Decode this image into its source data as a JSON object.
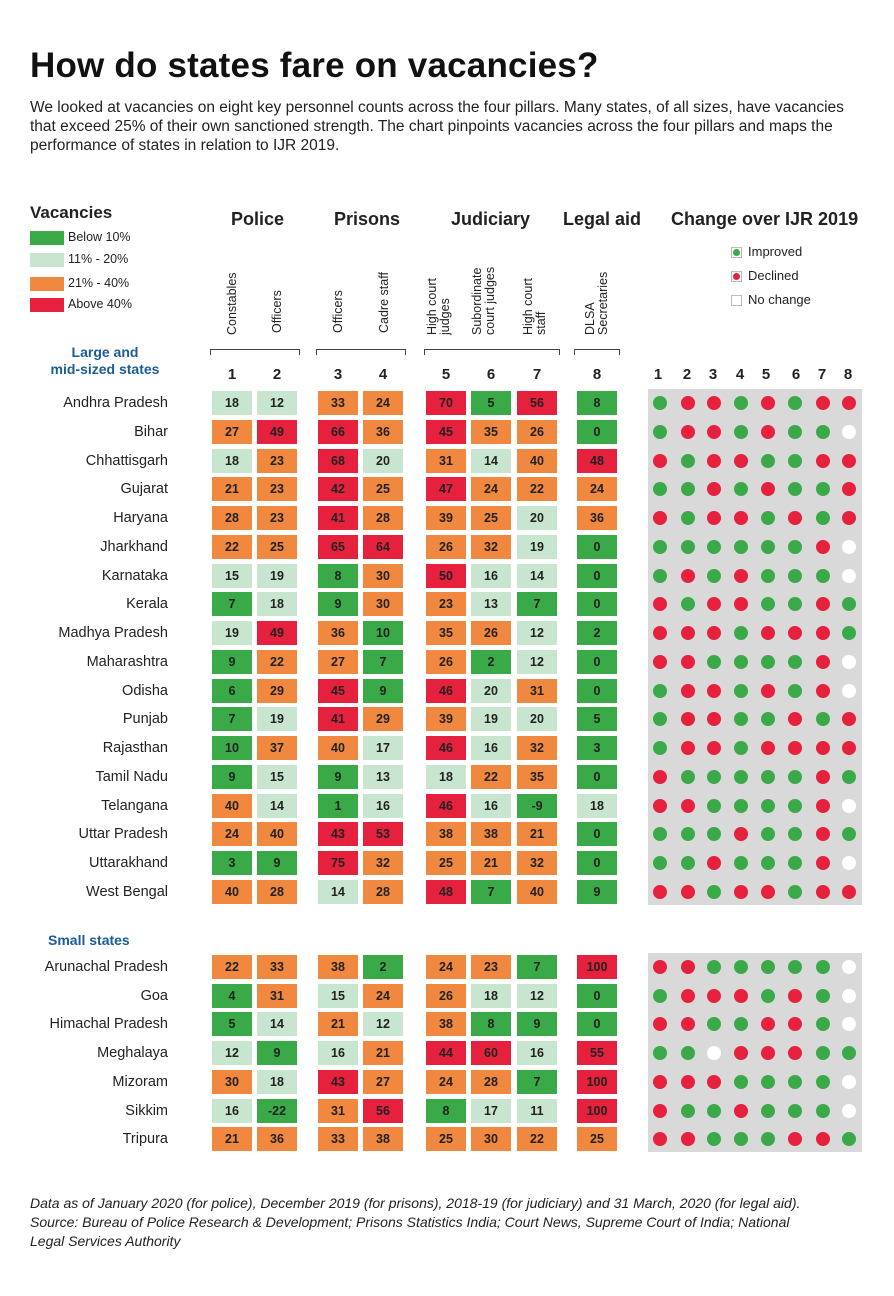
{
  "title": "How do states fare on vacancies?",
  "intro": "We looked at vacancies on eight key personnel counts across the four pillars. Many states, of all sizes, have vacancies that exceed 25% of their own sanctioned strength. The chart pinpoints vacancies across the four pillars and maps the performance of states in relation to IJR 2019.",
  "legend": {
    "title": "Vacancies",
    "items": [
      {
        "label": "Below 10%",
        "color": "#3aaa49"
      },
      {
        "label": "11% - 20%",
        "color": "#c8e6cf"
      },
      {
        "label": "21% - 40%",
        "color": "#f0883f"
      },
      {
        "label": "Above 40%",
        "color": "#e5213e"
      }
    ]
  },
  "pillars": [
    {
      "label": "Police",
      "subs": [
        "Constables",
        "Officers"
      ]
    },
    {
      "label": "Prisons",
      "subs": [
        "Officers",
        "Cadre staff"
      ]
    },
    {
      "label": "Judiciary",
      "subs": [
        "High court\njudges",
        "Subordinate\ncourt judges",
        "High court\nstaff"
      ]
    },
    {
      "label": "Legal aid",
      "subs": [
        "DLSA\nSecretaries"
      ]
    }
  ],
  "column_numbers": [
    "1",
    "2",
    "3",
    "4",
    "5",
    "6",
    "7",
    "8"
  ],
  "change": {
    "title": "Change over IJR 2019",
    "key": [
      {
        "label": "Improved",
        "color": "#3aaa49"
      },
      {
        "label": "Declined",
        "color": "#e5213e"
      },
      {
        "label": "No change",
        "color": "#ffffff"
      }
    ]
  },
  "chart_data": {
    "type": "table",
    "title": "How do states fare on vacancies?",
    "columns": [
      "Constables",
      "Officers (Police)",
      "Officers (Prisons)",
      "Cadre staff",
      "High court judges",
      "Subordinate court judges",
      "High court staff",
      "DLSA Secretaries"
    ],
    "bins": [
      "Below 10%",
      "11% - 20%",
      "21% - 40%",
      "Above 40%"
    ],
    "change_key": {
      "I": "Improved",
      "D": "Declined",
      "N": "No change"
    },
    "sections": [
      {
        "label": "Large and\nmid-sized states",
        "rows": [
          {
            "state": "Andhra Pradesh",
            "values": [
              "18",
              "12",
              "33",
              "24",
              "70",
              "5",
              "56",
              "8"
            ],
            "change": [
              "I",
              "D",
              "D",
              "I",
              "D",
              "I",
              "D",
              "D"
            ]
          },
          {
            "state": "Bihar",
            "values": [
              "27",
              "49",
              "66",
              "36",
              "45",
              "35",
              "26",
              "0"
            ],
            "change": [
              "I",
              "D",
              "D",
              "I",
              "D",
              "I",
              "I",
              "N"
            ]
          },
          {
            "state": "Chhattisgarh",
            "values": [
              "18",
              "23",
              "68",
              "20",
              "31",
              "14",
              "40",
              "48"
            ],
            "change": [
              "D",
              "I",
              "D",
              "D",
              "I",
              "I",
              "D",
              "D"
            ]
          },
          {
            "state": "Gujarat",
            "values": [
              "21",
              "23",
              "42",
              "25",
              "47",
              "24",
              "22",
              "24"
            ],
            "change": [
              "I",
              "I",
              "D",
              "I",
              "D",
              "I",
              "I",
              "D"
            ]
          },
          {
            "state": "Haryana",
            "values": [
              "28",
              "23",
              "41",
              "28",
              "39",
              "25",
              "20",
              "36"
            ],
            "change": [
              "D",
              "I",
              "D",
              "D",
              "I",
              "D",
              "I",
              "D"
            ]
          },
          {
            "state": "Jharkhand",
            "values": [
              "22",
              "25",
              "65",
              "64",
              "26",
              "32",
              "19",
              "0"
            ],
            "change": [
              "I",
              "I",
              "I",
              "I",
              "I",
              "I",
              "D",
              "N"
            ]
          },
          {
            "state": "Karnataka",
            "values": [
              "15",
              "19",
              "8",
              "30",
              "50",
              "16",
              "14",
              "0"
            ],
            "change": [
              "I",
              "D",
              "I",
              "D",
              "I",
              "I",
              "I",
              "N"
            ]
          },
          {
            "state": "Kerala",
            "values": [
              "7",
              "18",
              "9",
              "30",
              "23",
              "13",
              "7",
              "0"
            ],
            "change": [
              "D",
              "I",
              "D",
              "D",
              "I",
              "I",
              "D",
              "I"
            ]
          },
          {
            "state": "Madhya Pradesh",
            "values": [
              "19",
              "49",
              "36",
              "10",
              "35",
              "26",
              "12",
              "2"
            ],
            "change": [
              "D",
              "D",
              "D",
              "I",
              "D",
              "D",
              "D",
              "I"
            ]
          },
          {
            "state": "Maharashtra",
            "values": [
              "9",
              "22",
              "27",
              "7",
              "26",
              "2",
              "12",
              "0"
            ],
            "change": [
              "D",
              "D",
              "I",
              "I",
              "I",
              "I",
              "D",
              "N"
            ]
          },
          {
            "state": "Odisha",
            "values": [
              "6",
              "29",
              "45",
              "9",
              "46",
              "20",
              "31",
              "0"
            ],
            "change": [
              "I",
              "D",
              "D",
              "I",
              "D",
              "I",
              "D",
              "N"
            ]
          },
          {
            "state": "Punjab",
            "values": [
              "7",
              "19",
              "41",
              "29",
              "39",
              "19",
              "20",
              "5"
            ],
            "change": [
              "I",
              "D",
              "D",
              "I",
              "I",
              "D",
              "I",
              "D"
            ]
          },
          {
            "state": "Rajasthan",
            "values": [
              "10",
              "37",
              "40",
              "17",
              "46",
              "16",
              "32",
              "3"
            ],
            "change": [
              "I",
              "D",
              "D",
              "I",
              "D",
              "D",
              "D",
              "D"
            ]
          },
          {
            "state": "Tamil Nadu",
            "values": [
              "9",
              "15",
              "9",
              "13",
              "18",
              "22",
              "35",
              "0"
            ],
            "change": [
              "D",
              "I",
              "I",
              "I",
              "I",
              "I",
              "D",
              "I"
            ]
          },
          {
            "state": "Telangana",
            "values": [
              "40",
              "14",
              "1",
              "16",
              "46",
              "16",
              "-9",
              "18"
            ],
            "change": [
              "D",
              "D",
              "I",
              "I",
              "I",
              "I",
              "D",
              "N"
            ]
          },
          {
            "state": "Uttar Pradesh",
            "values": [
              "24",
              "40",
              "43",
              "53",
              "38",
              "38",
              "21",
              "0"
            ],
            "change": [
              "I",
              "I",
              "I",
              "D",
              "I",
              "I",
              "D",
              "I"
            ]
          },
          {
            "state": "Uttarakhand",
            "values": [
              "3",
              "9",
              "75",
              "32",
              "25",
              "21",
              "32",
              "0"
            ],
            "change": [
              "I",
              "I",
              "D",
              "I",
              "I",
              "I",
              "D",
              "N"
            ]
          },
          {
            "state": "West Bengal",
            "values": [
              "40",
              "28",
              "14",
              "28",
              "48",
              "7",
              "40",
              "9"
            ],
            "change": [
              "D",
              "D",
              "I",
              "D",
              "D",
              "I",
              "D",
              "D"
            ]
          }
        ]
      },
      {
        "label": "Small states",
        "rows": [
          {
            "state": "Arunachal Pradesh",
            "values": [
              "22",
              "33",
              "38",
              "2",
              "24",
              "23",
              "7",
              "100"
            ],
            "change": [
              "D",
              "D",
              "I",
              "I",
              "I",
              "I",
              "I",
              "N"
            ]
          },
          {
            "state": "Goa",
            "values": [
              "4",
              "31",
              "15",
              "24",
              "26",
              "18",
              "12",
              "0"
            ],
            "change": [
              "I",
              "D",
              "D",
              "D",
              "I",
              "D",
              "I",
              "N"
            ]
          },
          {
            "state": "Himachal Pradesh",
            "values": [
              "5",
              "14",
              "21",
              "12",
              "38",
              "8",
              "9",
              "0"
            ],
            "change": [
              "D",
              "D",
              "I",
              "I",
              "D",
              "D",
              "I",
              "N"
            ]
          },
          {
            "state": "Meghalaya",
            "values": [
              "12",
              "9",
              "16",
              "21",
              "44",
              "60",
              "16",
              "55"
            ],
            "change": [
              "I",
              "I",
              "N",
              "D",
              "D",
              "D",
              "I",
              "I"
            ]
          },
          {
            "state": "Mizoram",
            "values": [
              "30",
              "18",
              "43",
              "27",
              "24",
              "28",
              "7",
              "100"
            ],
            "change": [
              "D",
              "D",
              "D",
              "I",
              "I",
              "I",
              "I",
              "N"
            ]
          },
          {
            "state": "Sikkim",
            "values": [
              "16",
              "-22",
              "31",
              "56",
              "8",
              "17",
              "11",
              "100"
            ],
            "change": [
              "D",
              "I",
              "I",
              "D",
              "I",
              "I",
              "I",
              "N"
            ]
          },
          {
            "state": "Tripura",
            "values": [
              "21",
              "36",
              "33",
              "38",
              "25",
              "30",
              "22",
              "25"
            ],
            "change": [
              "D",
              "D",
              "I",
              "I",
              "I",
              "D",
              "D",
              "I"
            ]
          }
        ]
      }
    ]
  },
  "footnote": "Data as of January 2020 (for police), December 2019 (for prisons), 2018-19 (for judiciary) and 31 March, 2020 (for legal aid). Source: Bureau of Police Research & Development; Prisons Statistics India; Court News, Supreme Court of India; National Legal Services Authority"
}
